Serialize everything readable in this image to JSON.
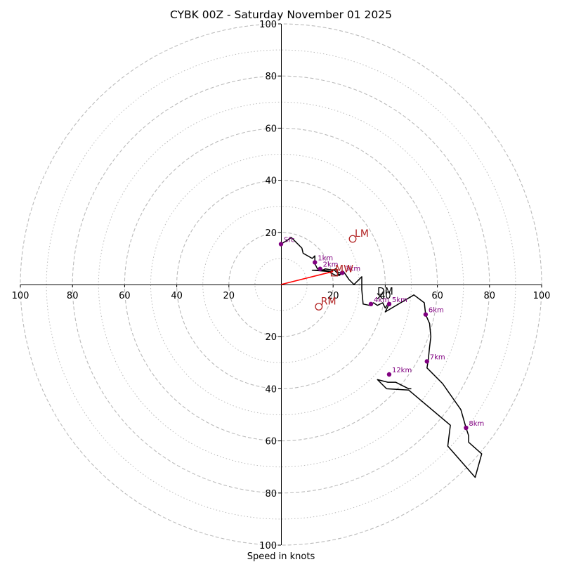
{
  "chart_data": {
    "type": "hodograph",
    "title": "CYBK 00Z - Saturday November 01 2025",
    "xlabel": "Speed in knots",
    "range": [
      -100,
      100
    ],
    "tick_values": [
      20,
      40,
      60,
      80,
      100
    ],
    "tick_labels": [
      "20",
      "40",
      "60",
      "80",
      "100"
    ],
    "rings_dashed": [
      20,
      40,
      60,
      80,
      100
    ],
    "rings_dotted": [
      10,
      30,
      50,
      70,
      90
    ],
    "hodograph_trace": [
      [
        0,
        15.5
      ],
      [
        4,
        18
      ],
      [
        8,
        14
      ],
      [
        8.5,
        12
      ],
      [
        12,
        10
      ],
      [
        13,
        11
      ],
      [
        13,
        8
      ],
      [
        14,
        6
      ],
      [
        19,
        5
      ],
      [
        21,
        6
      ],
      [
        22,
        4.5
      ],
      [
        23,
        4.5
      ],
      [
        22.5,
        3.5
      ],
      [
        20.5,
        5.5
      ],
      [
        20,
        5.5
      ],
      [
        17,
        6
      ],
      [
        16,
        5.5
      ],
      [
        12,
        5.5
      ],
      [
        18,
        5
      ],
      [
        21,
        3.5
      ],
      [
        22,
        3.5
      ],
      [
        23,
        4.2
      ],
      [
        24,
        5
      ],
      [
        26,
        2
      ],
      [
        28,
        0
      ],
      [
        31,
        3
      ],
      [
        31,
        -2
      ],
      [
        31.5,
        -7.5
      ],
      [
        34,
        -8
      ],
      [
        35.5,
        -7
      ],
      [
        37,
        -8
      ],
      [
        39,
        -7
      ],
      [
        40,
        -9
      ],
      [
        41,
        -7.5
      ],
      [
        42,
        -7
      ],
      [
        41,
        -8.5
      ],
      [
        40,
        -10.5
      ],
      [
        51,
        -4
      ],
      [
        55,
        -7
      ],
      [
        55.5,
        -11.5
      ],
      [
        57,
        -15
      ],
      [
        57.5,
        -20
      ],
      [
        57,
        -24
      ],
      [
        56.5,
        -29
      ],
      [
        56,
        -32
      ],
      [
        62,
        -38
      ],
      [
        69,
        -48
      ],
      [
        71,
        -55
      ],
      [
        72,
        -58
      ],
      [
        72,
        -60.5
      ],
      [
        77,
        -65
      ],
      [
        74.5,
        -74
      ],
      [
        64,
        -62
      ],
      [
        65,
        -54
      ],
      [
        49,
        -40.5
      ],
      [
        40.5,
        -40
      ],
      [
        37,
        -36.5
      ],
      [
        41,
        -37.5
      ],
      [
        44,
        -37.5
      ],
      [
        49,
        -40
      ],
      [
        50,
        -40
      ]
    ],
    "hodograph_color": "#000000",
    "height_markers": [
      {
        "label": "Sfc",
        "u": 0,
        "v": 15.5
      },
      {
        "label": "1km",
        "u": 13,
        "v": 8.5
      },
      {
        "label": "2km",
        "u": 15,
        "v": 6
      },
      {
        "label": "3km",
        "u": 23.5,
        "v": 4.5
      },
      {
        "label": "4km",
        "u": 34.5,
        "v": -7.5
      },
      {
        "label": "5km",
        "u": 41.5,
        "v": -7.5
      },
      {
        "label": "6km",
        "u": 55.5,
        "v": -11.5
      },
      {
        "label": "7km",
        "u": 56,
        "v": -29.5
      },
      {
        "label": "8km",
        "u": 71,
        "v": -55
      },
      {
        "label": "12km",
        "u": 41.5,
        "v": -34.5
      }
    ],
    "marker_color": "#800080",
    "motion_points": [
      {
        "label": "LM",
        "u": 27.5,
        "v": 17.5
      },
      {
        "label": "RM",
        "u": 14.5,
        "v": -8.5
      }
    ],
    "mean_wind": {
      "label": "MW",
      "u": 20.5,
      "v": 4.5
    },
    "deviant_motion": {
      "label": "DM",
      "u": 38,
      "v": -4.5
    },
    "storm_vector": {
      "u": 20,
      "v": 5
    },
    "motion_color": "#b22222",
    "vector_color": "#ff0000",
    "grid_color": "#bbbbbb"
  }
}
